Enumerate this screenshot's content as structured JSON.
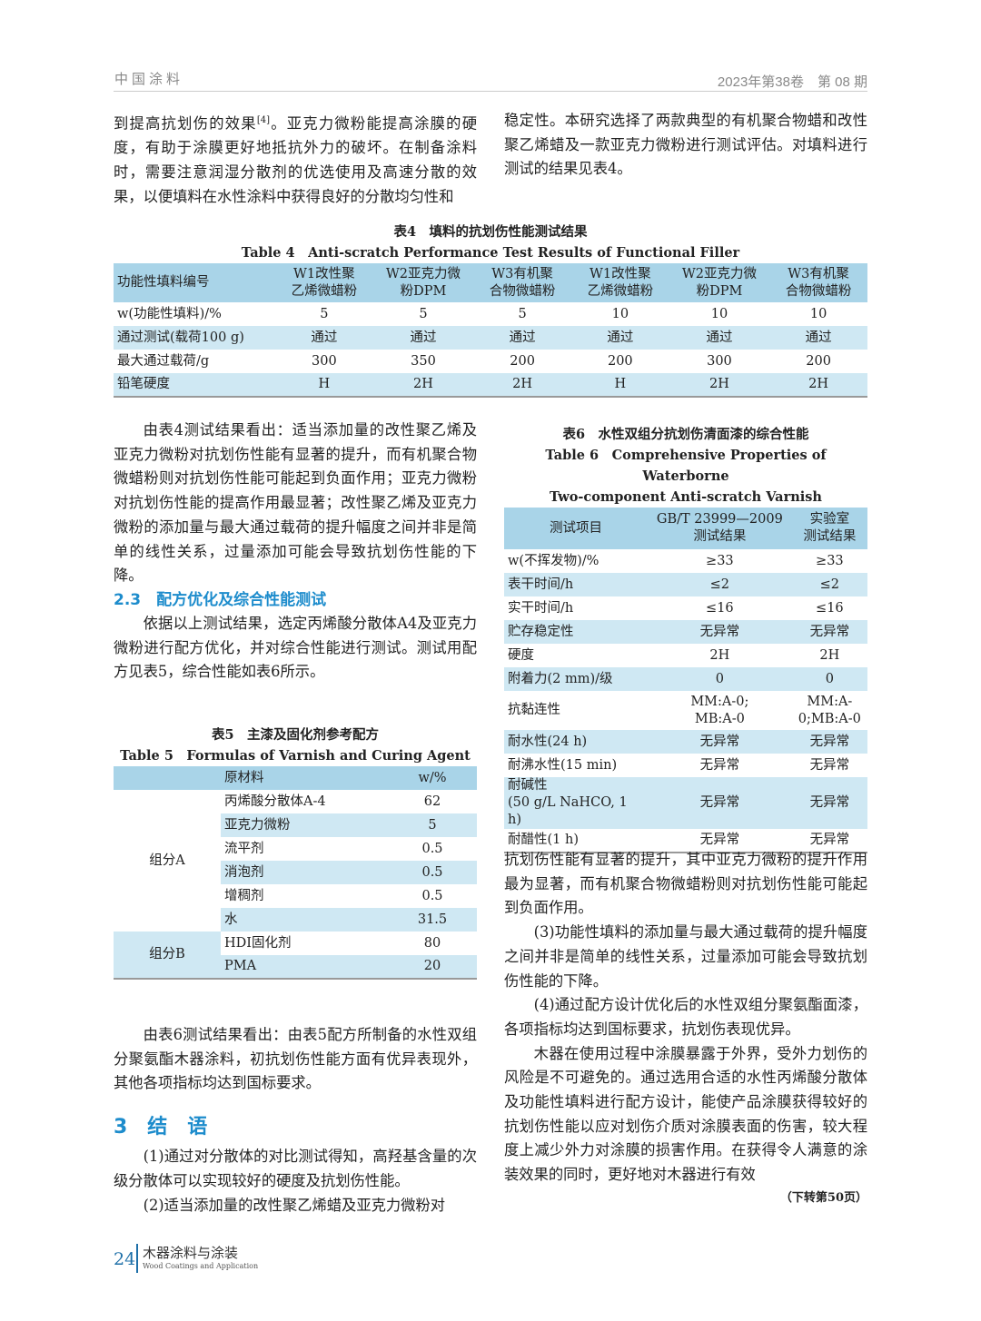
{
  "header": {
    "journal": "中国涂料",
    "issue": "2023年第38卷　第 08 期"
  },
  "left": {
    "p1_before_ref": "到提高抗划伤的效果",
    "p1_ref": "[4]",
    "p1_after_ref": "。亚克力微粉能提高涂膜的硬度，有助于涂膜更好地抵抗外力的破坏。在制备涂料时，需要注意润湿分散剂的优选使用及高速分散的效果，以便填料在水性涂料中获得良好的分散均匀性和",
    "p2": "由表4测试结果看出：适当添加量的改性聚乙烯及亚克力微粉对抗划伤性能有显著的提升，而有机聚合物微蜡粉则对抗划伤性能可能起到负面作用；亚克力微粉对抗划伤性能的提高作用最显著；改性聚乙烯及亚克力微粉的添加量与最大通过载荷的提升幅度之间并非是简单的线性关系，过量添加可能会导致抗划伤性能的下降。",
    "h23": "2.3　配方优化及综合性能测试",
    "p3": "依据以上测试结果，选定丙烯酸分散体A4及亚克力微粉进行配方优化，并对综合性能进行测试。测试用配方见表5，综合性能如表6所示。",
    "p4": "由表6测试结果看出：由表5配方所制备的水性双组分聚氨酯木器涂料，初抗划伤性能方面有优异表现外，其他各项指标均达到国标要求。",
    "h3": "3　结　语",
    "p5": "(1)通过对分散体的对比测试得知，高羟基含量的次级分散体可以实现较好的硬度及抗划伤性能。",
    "p6": "(2)适当添加量的改性聚乙烯蜡及亚克力微粉对"
  },
  "right": {
    "p1": "稳定性。本研究选择了两款典型的有机聚合物蜡和改性聚乙烯蜡及一款亚克力微粉进行测试评估。对填料进行测试的结果见表4。",
    "p2": "抗划伤性能有显著的提升，其中亚克力微粉的提升作用最为显著，而有机聚合物微蜡粉则对抗划伤性能可能起到负面作用。",
    "p3": "(3)功能性填料的添加量与最大通过载荷的提升幅度之间并非是简单的线性关系，过量添加可能会导致抗划伤性能的下降。",
    "p4": "(4)通过配方设计优化后的水性双组分聚氨酯面漆，各项指标均达到国标要求，抗划伤表现优异。",
    "p5": "木器在使用过程中涂膜暴露于外界，受外力划伤的风险是不可避免的。通过选用合适的水性丙烯酸分散体及功能性填料进行配方设计，能使产品涂膜获得较好的抗划伤性能以应对划伤介质对涂膜表面的伤害，较大程度上减少外力对涂膜的损害作用。在获得令人满意的涂装效果的同时，更好地对木器进行有效",
    "continued": "（下转第50页）"
  },
  "table4": {
    "caption_cn": "表4　填料的抗划伤性能测试结果",
    "caption_en": "Table 4　Anti-scratch Performance Test Results of Functional Filler",
    "header": [
      "功能性填料编号",
      "W1改性聚乙烯微蜡粉",
      "W2亚克力微粉DPM",
      "W3有机聚合物微蜡粉",
      "W1改性聚乙烯微蜡粉",
      "W2亚克力微粉DPM",
      "W3有机聚合物微蜡粉"
    ],
    "rows": [
      [
        "w(功能性填料)/%",
        "5",
        "5",
        "5",
        "10",
        "10",
        "10"
      ],
      [
        "通过测试(载荷100 g)",
        "通过",
        "通过",
        "通过",
        "通过",
        "通过",
        "通过"
      ],
      [
        "最大通过载荷/g",
        "300",
        "350",
        "200",
        "200",
        "300",
        "200"
      ],
      [
        "铅笔硬度",
        "H",
        "2H",
        "2H",
        "H",
        "2H",
        "2H"
      ]
    ]
  },
  "table5": {
    "caption_cn": "表5　主漆及固化剂参考配方",
    "caption_en": "Table 5　Formulas of Varnish and Curing Agent",
    "header": [
      "",
      "原材料",
      "w/%"
    ],
    "groups": [
      {
        "name": "组分A",
        "rows": [
          [
            "丙烯酸分散体A-4",
            "62"
          ],
          [
            "亚克力微粉",
            "5"
          ],
          [
            "流平剂",
            "0.5"
          ],
          [
            "消泡剂",
            "0.5"
          ],
          [
            "增稠剂",
            "0.5"
          ],
          [
            "水",
            "31.5"
          ]
        ]
      },
      {
        "name": "组分B",
        "rows": [
          [
            "HDI固化剂",
            "80"
          ],
          [
            "PMA",
            "20"
          ]
        ]
      }
    ]
  },
  "table6": {
    "caption_cn": "表6　水性双组分抗划伤清面漆的综合性能",
    "caption_en1": "Table 6　Comprehensive Properties of Waterborne",
    "caption_en2": "Two-component Anti-scratch Varnish",
    "header": [
      "测试项目",
      "GB/T 23999—2009\n测试结果",
      "实验室\n测试结果"
    ],
    "rows": [
      [
        "w(不挥发物)/%",
        "≥33",
        "≥33"
      ],
      [
        "表干时间/h",
        "≤2",
        "≤2"
      ],
      [
        "实干时间/h",
        "≤16",
        "≤16"
      ],
      [
        "贮存稳定性",
        "无异常",
        "无异常"
      ],
      [
        "硬度",
        "2H",
        "2H"
      ],
      [
        "附着力(2 mm)/级",
        "0",
        "0"
      ],
      [
        "抗黏连性",
        "MM:A-0;\nMB:A-0",
        "MM:A-\n0;MB:A-0"
      ],
      [
        "耐水性(24 h)",
        "无异常",
        "无异常"
      ],
      [
        "耐沸水性(15 min)",
        "无异常",
        "无异常"
      ],
      [
        "耐碱性\n(50 g/L NaHCO, 1 h)",
        "无异常",
        "无异常"
      ],
      [
        "耐醋性(1 h)",
        "无异常",
        "无异常"
      ]
    ]
  },
  "footer": {
    "page": "24",
    "magazine_cn": "木器涂料与涂装",
    "magazine_en": "Wood Coatings and Application"
  },
  "colors": {
    "accent": "#1d8ccc",
    "table_header": "#a9d4e8",
    "table_alt": "#cfe8f3"
  }
}
